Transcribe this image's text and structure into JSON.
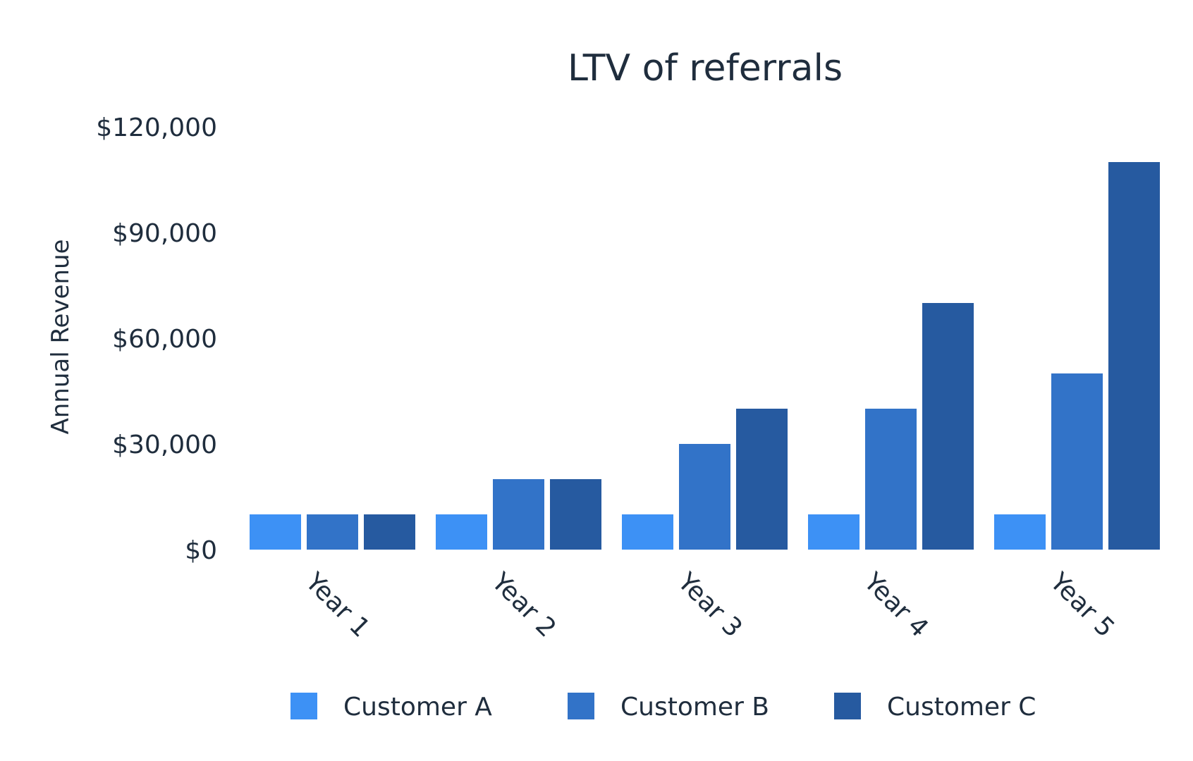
{
  "chart_data": {
    "type": "bar",
    "title": "LTV of referrals",
    "xlabel": "",
    "ylabel": "Annual Revenue",
    "categories": [
      "Year 1",
      "Year 2",
      "Year 3",
      "Year 4",
      "Year 5"
    ],
    "series": [
      {
        "name": "Customer A",
        "color": "#3d91f5",
        "values": [
          10000,
          10000,
          10000,
          10000,
          10000
        ]
      },
      {
        "name": "Customer B",
        "color": "#3273c8",
        "values": [
          10000,
          20000,
          30000,
          40000,
          50000
        ]
      },
      {
        "name": "Customer C",
        "color": "#265aa0",
        "values": [
          10000,
          20000,
          40000,
          70000,
          110000
        ]
      }
    ],
    "ylim": [
      0,
      120000
    ],
    "yticks": [
      0,
      30000,
      60000,
      90000,
      120000
    ],
    "ytick_labels": [
      "$0",
      "$30,000",
      "$60,000",
      "$90,000",
      "$120,000"
    ],
    "grid": false,
    "legend_position": "bottom"
  }
}
